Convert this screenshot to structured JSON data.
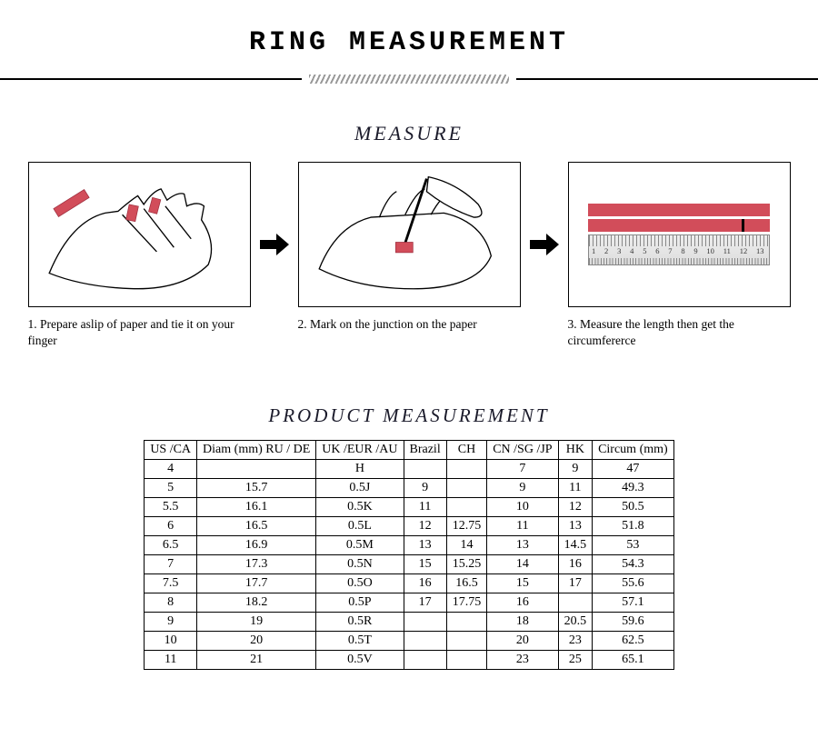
{
  "title": "RING MEASUREMENT",
  "measure_heading": "MEASURE",
  "steps": [
    {
      "caption": "1. Prepare aslip of paper and tie it on your finger"
    },
    {
      "caption": "2. Mark on the junction on the paper"
    },
    {
      "caption": "3. Measure the length then get the circumfererce"
    }
  ],
  "ruler_numbers": [
    "1",
    "2",
    "3",
    "4",
    "5",
    "6",
    "7",
    "8",
    "9",
    "10",
    "11",
    "12",
    "13"
  ],
  "product_heading": "PRODUCT MEASUREMENT",
  "columns": [
    "US /CA",
    "Diam (mm) RU / DE",
    "UK /EUR /AU",
    "Brazil",
    "CH",
    "CN /SG /JP",
    "HK",
    "Circum (mm)"
  ],
  "rows": [
    [
      "4",
      "",
      "H",
      "",
      "",
      "7",
      "9",
      "47"
    ],
    [
      "5",
      "15.7",
      "0.5J",
      "9",
      "",
      "9",
      "11",
      "49.3"
    ],
    [
      "5.5",
      "16.1",
      "0.5K",
      "11",
      "",
      "10",
      "12",
      "50.5"
    ],
    [
      "6",
      "16.5",
      "0.5L",
      "12",
      "12.75",
      "11",
      "13",
      "51.8"
    ],
    [
      "6.5",
      "16.9",
      "0.5M",
      "13",
      "14",
      "13",
      "14.5",
      "53"
    ],
    [
      "7",
      "17.3",
      "0.5N",
      "15",
      "15.25",
      "14",
      "16",
      "54.3"
    ],
    [
      "7.5",
      "17.7",
      "0.5O",
      "16",
      "16.5",
      "15",
      "17",
      "55.6"
    ],
    [
      "8",
      "18.2",
      "0.5P",
      "17",
      "17.75",
      "16",
      "",
      "57.1"
    ],
    [
      "9",
      "19",
      "0.5R",
      "",
      "",
      "18",
      "20.5",
      "59.6"
    ],
    [
      "10",
      "20",
      "0.5T",
      "",
      "",
      "20",
      "23",
      "62.5"
    ],
    [
      "11",
      "21",
      "0.5V",
      "",
      "",
      "23",
      "25",
      "65.1"
    ]
  ],
  "colors": {
    "accent": "#d24d5a",
    "border": "#000000",
    "bg": "#ffffff"
  }
}
